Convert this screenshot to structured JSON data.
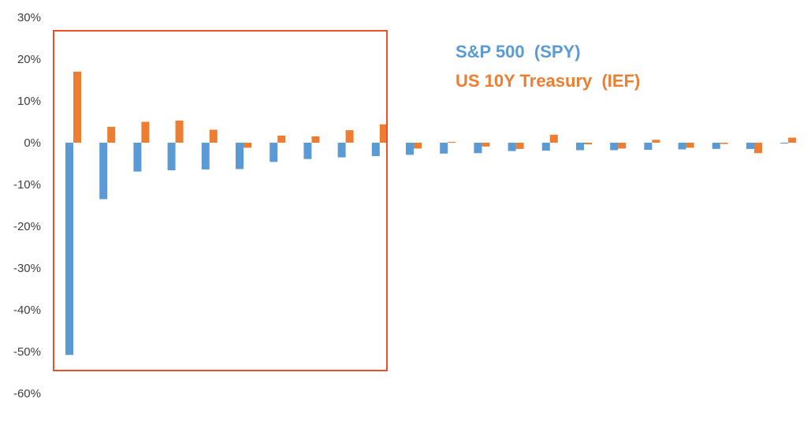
{
  "chart_data": {
    "type": "bar",
    "y_unit": "%",
    "ylim": [
      -60,
      30
    ],
    "y_ticks": [
      30,
      20,
      10,
      0,
      -10,
      -20,
      -30,
      -40,
      -50,
      -60
    ],
    "y_tick_labels": [
      "30%",
      "20%",
      "10%",
      "0%",
      "-10%",
      "-20%",
      "-30%",
      "-40%",
      "-50%",
      "-60%"
    ],
    "grid": false,
    "x_labels_shown": false,
    "legend_position": "top-center, inside plot area",
    "highlight_box": {
      "from_category_index": 0,
      "to_category_index": 9,
      "color": "#E8512A"
    },
    "series": [
      {
        "name": "S&P 500  (SPY)",
        "color": "#5B9BD5",
        "values": [
          -50.8,
          -13.5,
          -6.9,
          -6.6,
          -6.4,
          -6.3,
          -4.6,
          -3.9,
          -3.5,
          -3.2,
          -2.9,
          -2.6,
          -2.5,
          -2.0,
          -1.9,
          -1.8,
          -1.8,
          -1.7,
          -1.6,
          -1.5,
          -1.5,
          -0.2
        ]
      },
      {
        "name": "US 10Y Treasury  (IEF)",
        "color": "#ED7D31",
        "values": [
          17.0,
          3.8,
          5.0,
          5.3,
          3.1,
          -1.2,
          1.7,
          1.5,
          3.0,
          4.4,
          -1.4,
          0.2,
          -0.9,
          -1.5,
          1.9,
          -0.4,
          -1.4,
          0.7,
          -1.2,
          -0.3,
          -2.5,
          1.2
        ]
      }
    ]
  }
}
